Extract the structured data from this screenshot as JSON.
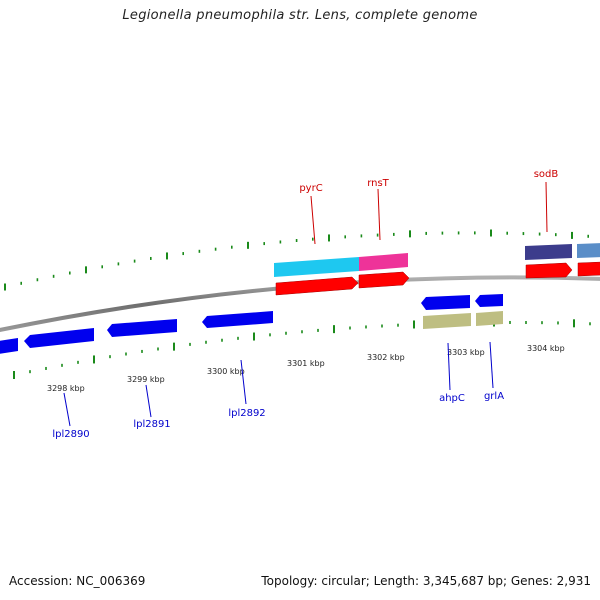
{
  "title": "Legionella pneumophila str. Lens, complete genome",
  "footer": {
    "accession": "Accession: NC_006369",
    "summary": "Topology: circular; Length: 3,345,687 bp; Genes: 2,931"
  },
  "kbp_labels": [
    "3298 kbp",
    "3299 kbp",
    "3300 kbp",
    "3301 kbp",
    "3302 kbp",
    "3303 kbp",
    "3304 kbp"
  ],
  "gene_labels": {
    "forward": [
      "pyrC",
      "rnsT",
      "sodB"
    ],
    "reverse": [
      "lpl2890",
      "lpl2891",
      "lpl2892",
      "ahpC",
      "grlA"
    ]
  },
  "colors": {
    "backbone": "#808080",
    "tick": "#1a8a1a",
    "forward_label": "#cc0000",
    "reverse_label": "#0000cc",
    "cds_forward": "#ff0000",
    "cds_reverse": "#0000ee",
    "pyrC_feature": "#1ec8f0",
    "rnsT_feature": "#ee3399",
    "sodB_feature": "#3c3c8c",
    "sodB_neighbor_feature": "#5a8ec8",
    "reverse_feature": "#bebe82"
  }
}
